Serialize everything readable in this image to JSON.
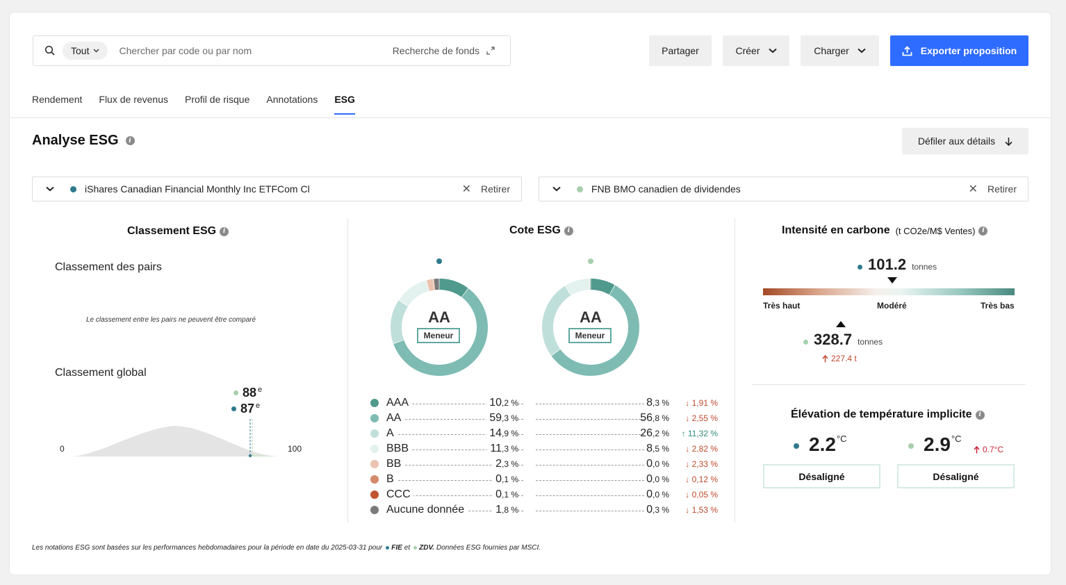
{
  "search": {
    "scope": "Tout",
    "placeholder": "Chercher par code ou par nom",
    "fund_search_label": "Recherche de fonds"
  },
  "toolbar": {
    "share_label": "Partager",
    "create_label": "Créer",
    "load_label": "Charger",
    "export_label": "Exporter proposition"
  },
  "tabs": [
    "Rendement",
    "Flux de revenus",
    "Profil de risque",
    "Annotations",
    "ESG"
  ],
  "active_tab": "ESG",
  "page": {
    "title": "Analyse ESG",
    "scroll_button": "Défiler aux détails"
  },
  "funds": [
    {
      "name": "iShares Canadian Financial Monthly Inc ETFCom Cl",
      "color": "#2e7a8c",
      "remove_label": "Retirer",
      "code": "FIE"
    },
    {
      "name": "FNB BMO canadien de dividendes",
      "color": "#a8d0ad",
      "remove_label": "Retirer",
      "code": "ZDV"
    }
  ],
  "ranking": {
    "title": "Classement ESG",
    "peer_title": "Classement des pairs",
    "peer_message": "Le classement entre les pairs ne peuvent être comparé",
    "global_title": "Classement global",
    "fund2_rank": "88",
    "fund1_rank": "87",
    "rank_suffix": "e",
    "axis_min": "0",
    "axis_max": "100"
  },
  "rating": {
    "title": "Cote ESG",
    "fund1_grade": "AA",
    "fund1_badge": "Meneur",
    "fund2_grade": "AA",
    "fund2_badge": "Meneur"
  },
  "chart_data": {
    "type": "pie",
    "categories": [
      "AAA",
      "AA",
      "A",
      "BBB",
      "BB",
      "B",
      "CCC",
      "Aucune donnée"
    ],
    "colors": [
      "#4f9a8c",
      "#7ebcb3",
      "#bfdfdb",
      "#e3f1ef",
      "#ebc3b0",
      "#d4896b",
      "#c0552e",
      "#7a7a7a"
    ],
    "series": [
      {
        "values": [
          10.2,
          59.3,
          14.9,
          11.3,
          2.3,
          0.1,
          0.1,
          1.8
        ]
      },
      {
        "values": [
          8.3,
          56.8,
          26.2,
          8.5,
          0.0,
          0.0,
          0.0,
          0.3
        ]
      }
    ]
  },
  "rating_rows": [
    {
      "name": "AAA",
      "v1_int": "10",
      "v1_dec": ",2 %",
      "v2_int": "8",
      "v2_dec": ",3 %",
      "delta": "↓ 1,91 %",
      "dir": "down"
    },
    {
      "name": "AA",
      "v1_int": "59",
      "v1_dec": ",3 %",
      "v2_int": "56",
      "v2_dec": ",8 %",
      "delta": "↓ 2,55 %",
      "dir": "down"
    },
    {
      "name": "A",
      "v1_int": "14",
      "v1_dec": ",9 %",
      "v2_int": "26",
      "v2_dec": ",2 %",
      "delta": "↑ 11,32 %",
      "dir": "up"
    },
    {
      "name": "BBB",
      "v1_int": "11",
      "v1_dec": ",3 %",
      "v2_int": "8",
      "v2_dec": ",5 %",
      "delta": "↓ 2,82 %",
      "dir": "down"
    },
    {
      "name": "BB",
      "v1_int": "2",
      "v1_dec": ",3 %",
      "v2_int": "0",
      "v2_dec": ",0 %",
      "delta": "↓ 2,33 %",
      "dir": "down"
    },
    {
      "name": "B",
      "v1_int": "0",
      "v1_dec": ",1 %",
      "v2_int": "0",
      "v2_dec": ",0 %",
      "delta": "↓ 0,12 %",
      "dir": "down"
    },
    {
      "name": "CCC",
      "v1_int": "0",
      "v1_dec": ",1 %",
      "v2_int": "0",
      "v2_dec": ",0 %",
      "delta": "↓ 0,05 %",
      "dir": "down"
    },
    {
      "name": "Aucune donnée",
      "v1_int": "1",
      "v1_dec": ",8 %",
      "v2_int": "0",
      "v2_dec": ",3 %",
      "delta": "↓ 1,53 %",
      "dir": "down"
    }
  ],
  "carbon": {
    "title": "Intensité en carbone",
    "unit_label": "(t CO2e/M$ Ventes)",
    "fund1_value": "101.2",
    "fund1_unit": "tonnes",
    "fund2_value": "328.7",
    "fund2_unit": "tonnes",
    "fund2_delta": "227.4 t",
    "scale_left": "Très haut",
    "scale_mid": "Modéré",
    "scale_right": "Très bas"
  },
  "temperature": {
    "title": "Élévation de température implicite",
    "fund1_value": "2.2",
    "fund2_value": "2.9",
    "unit": "°C",
    "fund2_delta": "0.7°C",
    "fund1_status": "Désaligné",
    "fund2_status": "Désaligné"
  },
  "footnote": {
    "prefix": "Les notations ESG sont basées sur les performances hebdomadaires pour la période en date du 2025-03-31 pour",
    "fund1_code": "FIE",
    "joiner": "et",
    "fund2_code": "ZDV.",
    "suffix": "Données ESG fournies par MSCI."
  }
}
